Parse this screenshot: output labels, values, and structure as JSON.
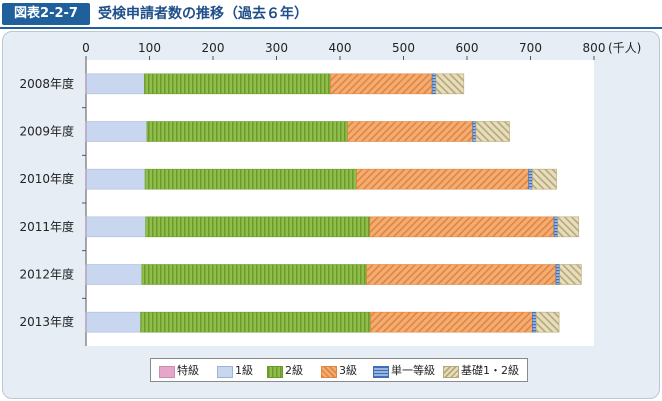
{
  "header": {
    "badge": "図表2-2-7",
    "title": "受検申請者数の推移（過去６年）"
  },
  "colors": {
    "tokkyu": "#e6a6c9",
    "ikkyu": "#c8d7ef",
    "nikyu": "#8fbe4a",
    "sankyu": "#ef9a57",
    "tanitsu": "#5a86c6",
    "kiso": "#d8cca2"
  },
  "chart_data": {
    "type": "bar",
    "orientation": "horizontal",
    "stacked": true,
    "title": "",
    "xlabel": "",
    "ylabel": "",
    "unit_label": "(千人)",
    "xlim": [
      0,
      800
    ],
    "xticks": [
      0,
      100,
      200,
      300,
      400,
      500,
      600,
      700,
      800
    ],
    "xtick_labels": [
      "0",
      "100",
      "200",
      "300",
      "400",
      "500",
      "600",
      "700",
      "800"
    ],
    "categories": [
      "2008年度",
      "2009年度",
      "2010年度",
      "2011年度",
      "2012年度",
      "2013年度"
    ],
    "series": [
      {
        "name": "特級",
        "values": [
          1,
          1,
          1,
          1,
          1,
          1
        ]
      },
      {
        "name": "1級",
        "values": [
          91,
          95,
          92,
          93,
          87,
          85
        ]
      },
      {
        "name": "2級",
        "values": [
          293,
          316,
          333,
          353,
          354,
          362
        ]
      },
      {
        "name": "3級",
        "values": [
          160,
          197,
          271,
          290,
          298,
          255
        ]
      },
      {
        "name": "単一等級",
        "values": [
          6,
          5,
          6,
          6,
          6,
          6
        ]
      },
      {
        "name": "基礎1・2級",
        "values": [
          44,
          53,
          38,
          33,
          34,
          36
        ]
      }
    ],
    "grid": false,
    "legend_position": "bottom"
  },
  "legend": {
    "items": [
      "特級",
      "1級",
      "2級",
      "3級",
      "単一等級",
      "基礎1・2級"
    ]
  }
}
